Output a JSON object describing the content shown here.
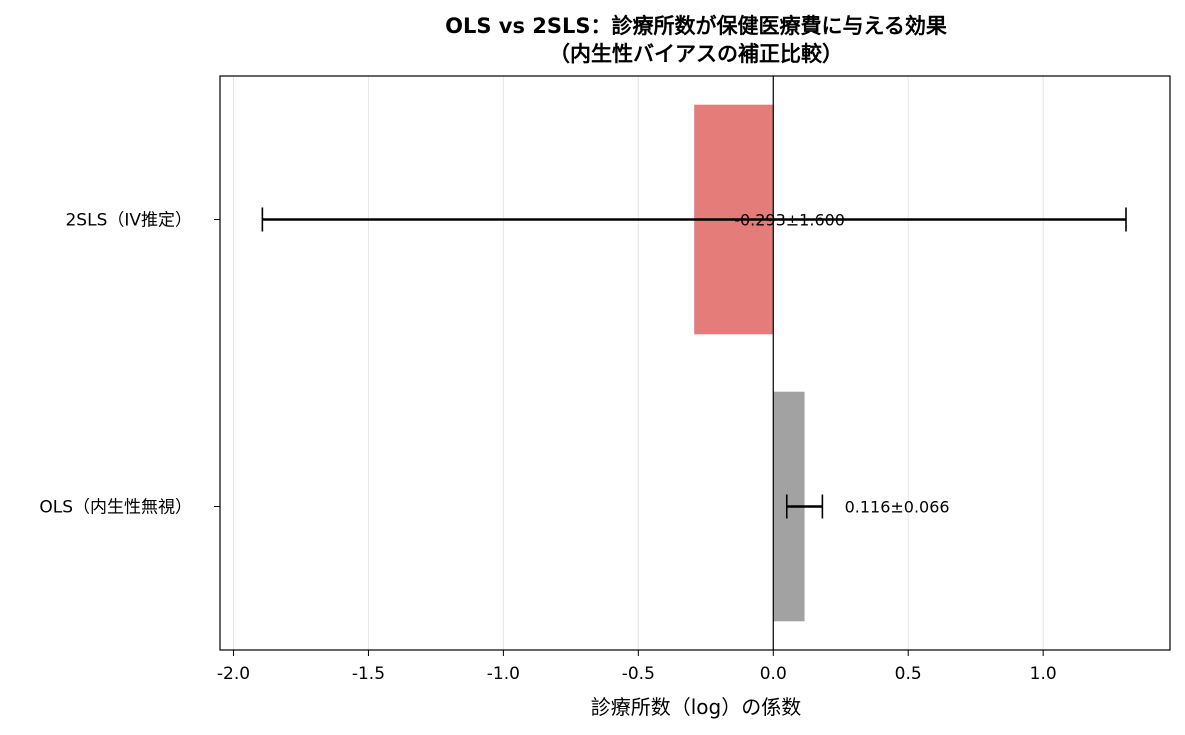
{
  "chart_data": {
    "type": "bar",
    "orientation": "horizontal",
    "title": "OLS vs 2SLS：診療所数が保健医療費に与える効果",
    "subtitle": "（内生性バイアスの補正比較）",
    "xlabel": "診療所数（log）の係数",
    "ylabel": "",
    "xlim": [
      -2.05,
      1.47
    ],
    "xticks": [
      -2.0,
      -1.5,
      -1.0,
      -0.5,
      0.0,
      0.5,
      1.0
    ],
    "xtick_labels": [
      "-2.0",
      "-1.5",
      "-1.0",
      "-0.5",
      "0.0",
      "0.5",
      "1.0"
    ],
    "grid": "vertical",
    "categories": [
      "2SLS（IV推定）",
      "OLS（内生性無視）"
    ],
    "values": [
      -0.293,
      0.116
    ],
    "errors": [
      1.6,
      0.066
    ],
    "data_labels": [
      "-0.293±1.600",
      "0.116±0.066"
    ],
    "colors": [
      "#e47c7a",
      "#a2a2a2"
    ]
  }
}
